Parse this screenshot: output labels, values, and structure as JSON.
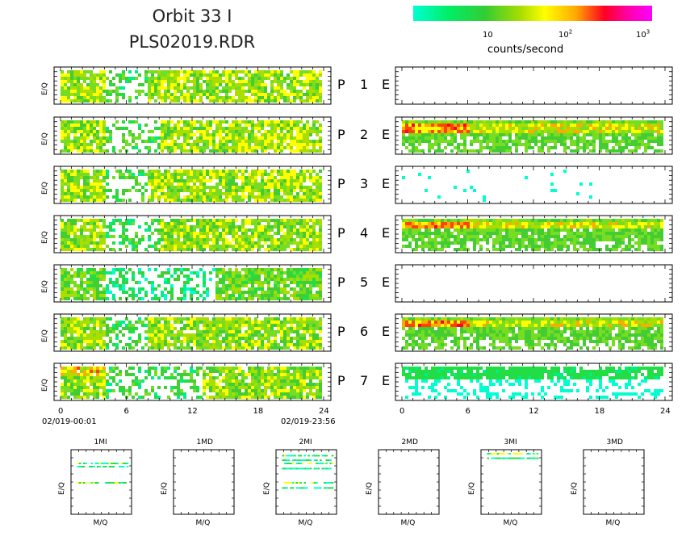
{
  "header": {
    "title_line1": "Orbit 33 I",
    "title_line2": "PLS02019.RDR"
  },
  "colorbar": {
    "unit_label": "counts/second",
    "tick_labels": [
      "10",
      "10^2",
      "10^3"
    ],
    "tick_values": [
      10,
      100,
      1000
    ],
    "range": [
      1,
      1500
    ],
    "colors": [
      "#00ffd0",
      "#00ee66",
      "#33cc33",
      "#aadd00",
      "#ffff00",
      "#ffaa00",
      "#ff3300",
      "#ff0044",
      "#ff00aa",
      "#ff00ff"
    ]
  },
  "chart_data": [
    {
      "type": "heatmap",
      "name": "P-spectrograms",
      "ylabel": "E/Q",
      "xlabel": "",
      "x_range": [
        0,
        24
      ],
      "x_ticks": [
        "0",
        "6",
        "12",
        "18",
        "24"
      ],
      "x_start_label": "02/019-00:01",
      "x_end_label": "02/019-23:56",
      "panels": [
        {
          "label": "P 1",
          "level": 0.52,
          "sparse_hours": [
            4,
            8
          ]
        },
        {
          "label": "P 2",
          "level": 0.52,
          "sparse_hours": [
            4,
            9
          ]
        },
        {
          "label": "P 3",
          "level": 0.52,
          "sparse_hours": [
            4,
            8
          ]
        },
        {
          "label": "P 4",
          "level": 0.5,
          "sparse_hours": [
            4,
            9
          ]
        },
        {
          "label": "P 5",
          "level": 0.42,
          "sparse_hours": [
            4,
            14
          ]
        },
        {
          "label": "P 6",
          "level": 0.5,
          "sparse_hours": [
            4,
            8
          ]
        },
        {
          "label": "P 7",
          "level": 0.5,
          "sparse_hours": [
            4,
            13
          ]
        }
      ]
    },
    {
      "type": "heatmap",
      "name": "E-spectrograms",
      "ylabel": "",
      "xlabel": "",
      "x_range": [
        0,
        24
      ],
      "x_ticks": [
        "0",
        "6",
        "12",
        "18",
        "24"
      ],
      "panels": [
        {
          "label": "E",
          "mode": "empty"
        },
        {
          "label": "E",
          "mode": "band",
          "hot_band": [
            0.1,
            0.35
          ]
        },
        {
          "label": "E",
          "mode": "specks"
        },
        {
          "label": "E",
          "mode": "band",
          "hot_band": [
            0.05,
            0.3
          ]
        },
        {
          "label": "E",
          "mode": "empty"
        },
        {
          "label": "E",
          "mode": "band",
          "hot_band": [
            0.1,
            0.3
          ]
        },
        {
          "label": "E",
          "mode": "faint"
        }
      ]
    },
    {
      "type": "scatter",
      "name": "mass-spectra",
      "xlabel": "M/Q",
      "ylabel": "E/Q",
      "panels": [
        {
          "label": "1MI",
          "rows": [
            0.2,
            0.25,
            0.5
          ],
          "x_span": [
            0.1,
            0.95
          ]
        },
        {
          "label": "1MD",
          "rows": []
        },
        {
          "label": "2MI",
          "rows": [
            0.08,
            0.15,
            0.2,
            0.28,
            0.5,
            0.58
          ],
          "x_span": [
            0.1,
            0.95
          ]
        },
        {
          "label": "2MD",
          "rows": []
        },
        {
          "label": "3MI",
          "rows": [
            0.05,
            0.12
          ],
          "x_span": [
            0.1,
            0.95
          ]
        },
        {
          "label": "3MD",
          "rows": []
        }
      ]
    }
  ]
}
